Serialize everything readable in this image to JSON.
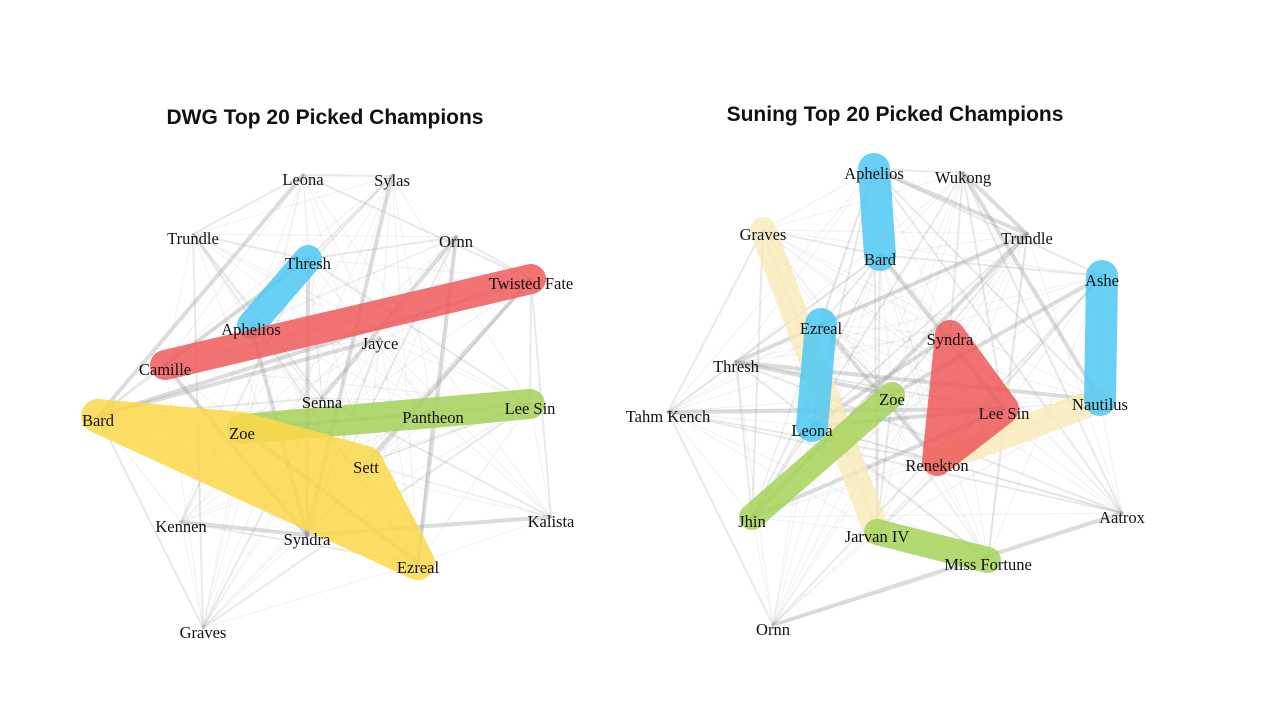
{
  "colors": {
    "blue": "#4fc8f3",
    "red": "#ee5a5a",
    "green": "#a6d25a",
    "yellow": "#fdd94a",
    "paleyellow": "#f7eab8",
    "edge": "#9a9a9a"
  },
  "graphs": [
    {
      "title": "DWG Top 20 Picked Champions",
      "nodes": [
        "Leona",
        "Sylas",
        "Trundle",
        "Ornn",
        "Thresh",
        "Twisted Fate",
        "Aphelios",
        "Jayce",
        "Camille",
        "Senna",
        "Lee Sin",
        "Pantheon",
        "Bard",
        "Zoe",
        "Sett",
        "Kennen",
        "Kalista",
        "Syndra",
        "Ezreal",
        "Graves"
      ],
      "groups": [
        {
          "color": "blue",
          "members": [
            "Thresh",
            "Aphelios"
          ]
        },
        {
          "color": "red",
          "members": [
            "Twisted Fate",
            "Camille"
          ]
        },
        {
          "color": "green",
          "members": [
            "Zoe",
            "Pantheon",
            "Lee Sin"
          ]
        },
        {
          "color": "yellow",
          "members": [
            "Bard",
            "Zoe",
            "Sett",
            "Ezreal"
          ]
        }
      ]
    },
    {
      "title": "Suning Top 20 Picked Champions",
      "nodes": [
        "Aphelios",
        "Wukong",
        "Graves",
        "Trundle",
        "Bard",
        "Ashe",
        "Ezreal",
        "Syndra",
        "Thresh",
        "Zoe",
        "Nautilus",
        "Tahm Kench",
        "Lee Sin",
        "Leona",
        "Renekton",
        "Jhin",
        "Aatrox",
        "Jarvan IV",
        "Miss Fortune",
        "Ornn"
      ],
      "groups": [
        {
          "color": "paleyellow",
          "members": [
            "Graves",
            "Jarvan IV"
          ]
        },
        {
          "color": "paleyellow",
          "members": [
            "Renekton",
            "Nautilus"
          ]
        },
        {
          "color": "blue",
          "members": [
            "Aphelios",
            "Bard"
          ]
        },
        {
          "color": "blue",
          "members": [
            "Ashe",
            "Nautilus"
          ]
        },
        {
          "color": "blue",
          "members": [
            "Ezreal",
            "Leona"
          ]
        },
        {
          "color": "red",
          "members": [
            "Syndra",
            "Lee Sin",
            "Renekton"
          ]
        },
        {
          "color": "green",
          "members": [
            "Zoe",
            "Jhin"
          ]
        },
        {
          "color": "green",
          "members": [
            "Jarvan IV",
            "Miss Fortune"
          ]
        }
      ]
    }
  ]
}
